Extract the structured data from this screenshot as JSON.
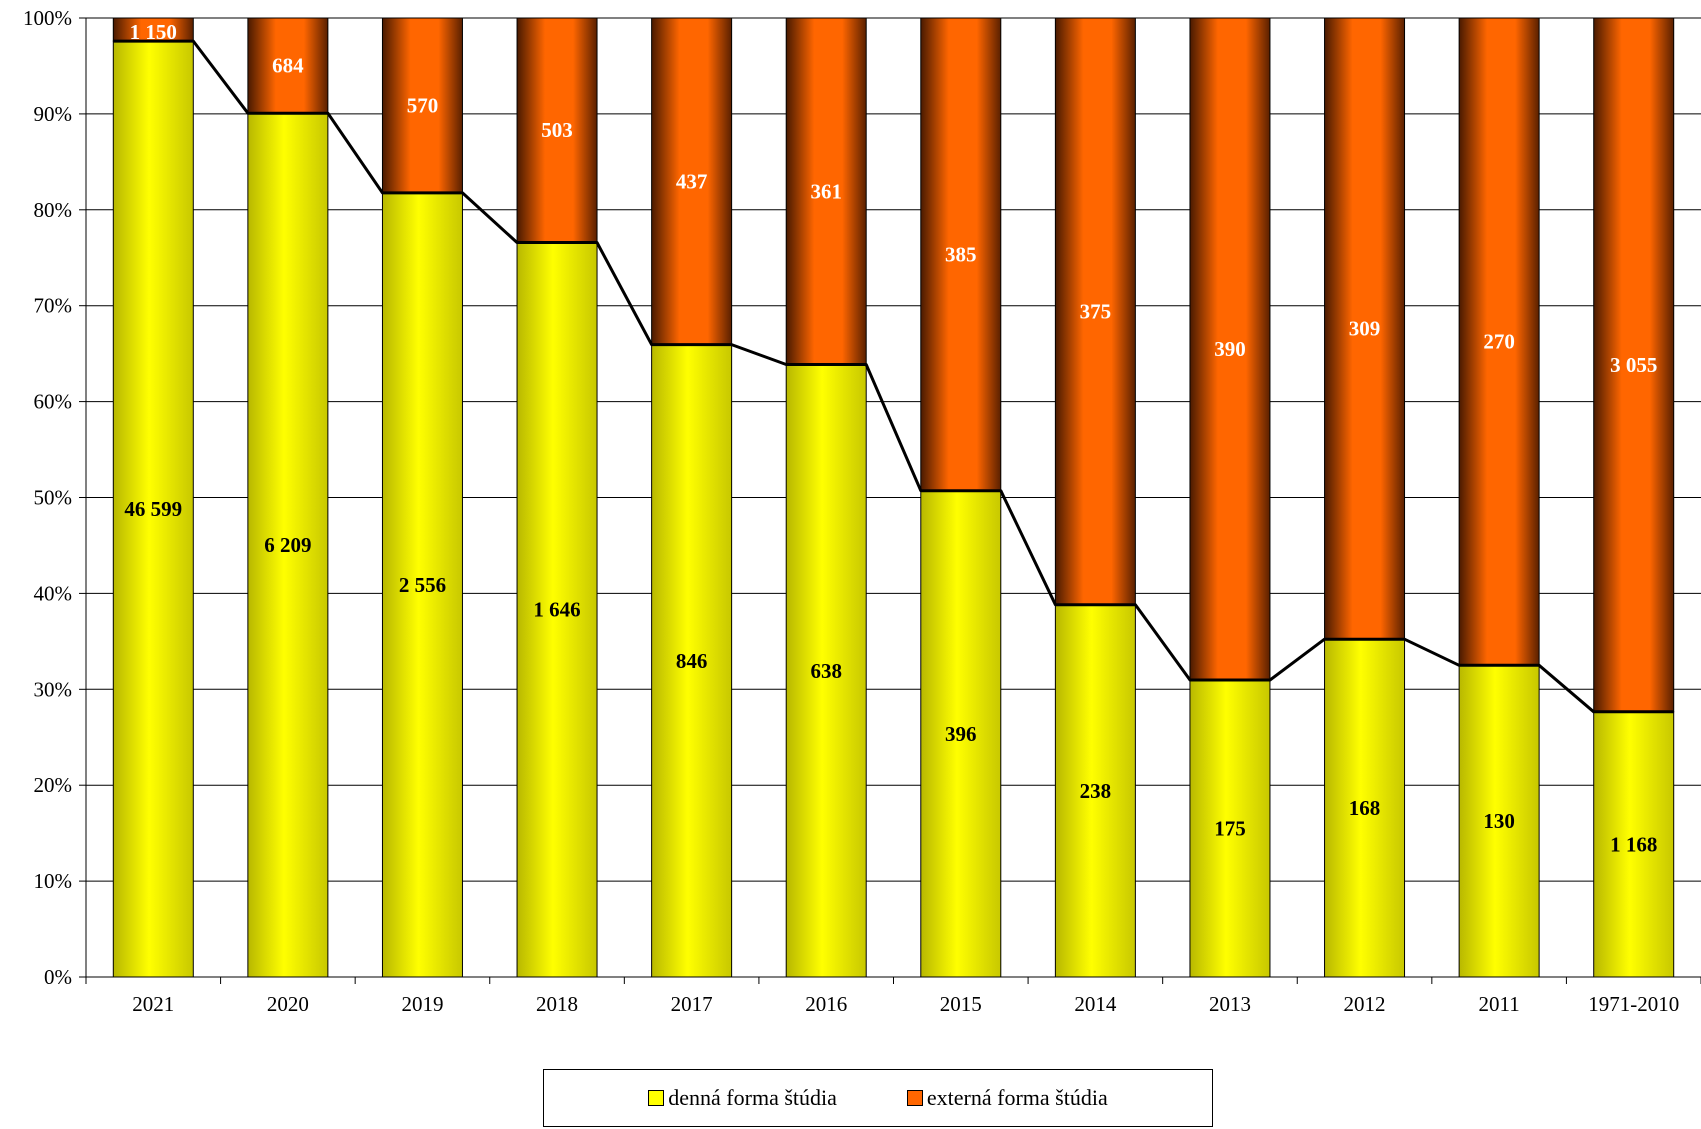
{
  "chart_data": {
    "type": "bar",
    "stacked": true,
    "normalized": true,
    "categories": [
      "2021",
      "2020",
      "2019",
      "2018",
      "2017",
      "2016",
      "2015",
      "2014",
      "2013",
      "2012",
      "2011",
      "1971-2010"
    ],
    "series": [
      {
        "name": "denná forma štúdia",
        "color": "#FFFF00",
        "values": [
          46599,
          6209,
          2556,
          1646,
          846,
          638,
          396,
          238,
          175,
          168,
          130,
          1168
        ],
        "labels": [
          "46 599",
          "6 209",
          "2 556",
          "1 646",
          "846",
          "638",
          "396",
          "238",
          "175",
          "168",
          "130",
          "1 168"
        ]
      },
      {
        "name": "externá forma štúdia",
        "color": "#FF6600",
        "values": [
          1150,
          684,
          570,
          503,
          437,
          361,
          385,
          375,
          390,
          309,
          270,
          3055
        ],
        "labels": [
          "1 150",
          "684",
          "570",
          "503",
          "437",
          "361",
          "385",
          "375",
          "390",
          "309",
          "270",
          "3 055"
        ]
      }
    ],
    "yticks": [
      "0%",
      "10%",
      "20%",
      "30%",
      "40%",
      "50%",
      "60%",
      "70%",
      "80%",
      "90%",
      "100%"
    ],
    "ylim": [
      0,
      100
    ],
    "grid": true,
    "line_overlay": "boundary between series",
    "legend_position": "bottom",
    "title": "",
    "xlabel": "",
    "ylabel": ""
  },
  "legend": {
    "items": [
      {
        "label": "denná forma štúdia",
        "color": "#FFFF00"
      },
      {
        "label": "externá forma štúdia",
        "color": "#FF6600"
      }
    ]
  }
}
